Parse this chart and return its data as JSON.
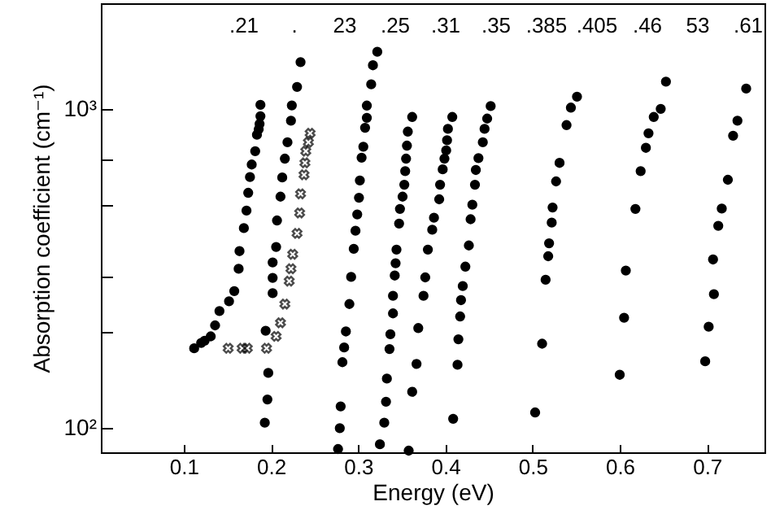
{
  "chart_data": {
    "type": "scatter",
    "xlabel": "Energy (eV)",
    "ylabel": "Absorption coefficient (cm⁻¹)",
    "log": "y",
    "grid": false,
    "marker": "circle",
    "xlim": [
      0.005,
      0.766
    ],
    "xticks": [
      0.1,
      0.2,
      0.3,
      0.4,
      0.5,
      0.6,
      0.7
    ],
    "ylim": [
      84,
      2150
    ],
    "yticks": [
      {
        "value": 100,
        "label": "10²"
      },
      {
        "value": 200,
        "label": null
      },
      {
        "value": 300,
        "label": null
      },
      {
        "value": 500,
        "label": null
      },
      {
        "value": 700,
        "label": null
      },
      {
        "value": 1000,
        "label": "10³"
      }
    ],
    "annotations": [
      ".21",
      ". ",
      "23",
      ".25",
      ".31",
      ".35",
      ".385",
      ".405",
      ".46",
      "53",
      ".61"
    ],
    "series": [
      {
        "color": "#000000",
        "x": [
          0.112,
          0.12,
          0.124,
          0.131,
          0.136,
          0.141,
          0.152,
          0.158,
          0.163,
          0.164,
          0.169,
          0.172,
          0.174,
          0.176,
          0.178,
          0.182,
          0.184,
          0.186,
          0.187,
          0.188,
          0.188
        ],
        "values": [
          178,
          185,
          188,
          194,
          210,
          233,
          250,
          269,
          316,
          359,
          424,
          481,
          547,
          613,
          671,
          739,
          832,
          865,
          900,
          951,
          1032
        ]
      },
      {
        "color": "#000000",
        "x": [
          0.193,
          0.196,
          0.197,
          0.194,
          0.202,
          0.202,
          0.202,
          0.206,
          0.207,
          0.211,
          0.213,
          0.216,
          0.219,
          0.223,
          0.224,
          0.23,
          0.234
        ],
        "values": [
          104,
          123,
          149,
          202,
          265,
          296,
          331,
          370,
          448,
          532,
          611,
          700,
          788,
          921,
          1028,
          1175,
          1406
        ]
      },
      {
        "color": "#000000",
        "marker": "cross",
        "x": [
          0.151,
          0.167,
          0.173,
          0.195,
          0.206,
          0.211,
          0.216,
          0.221,
          0.223,
          0.225,
          0.23,
          0.233,
          0.234,
          0.238,
          0.239,
          0.24,
          0.243,
          0.245
        ],
        "values": [
          178,
          178,
          178,
          178,
          194,
          214,
          245,
          289,
          316,
          351,
          408,
          473,
          543,
          623,
          679,
          739,
          788,
          841
        ]
      },
      {
        "color": "#000000",
        "x": [
          0.277,
          0.279,
          0.28,
          0.282,
          0.284,
          0.286,
          0.29,
          0.292,
          0.295,
          0.297,
          0.299,
          0.301,
          0.302,
          0.304,
          0.306,
          0.308,
          0.31,
          0.31,
          0.315,
          0.317,
          0.322
        ],
        "values": [
          86,
          100,
          117,
          161,
          179,
          201,
          245,
          298,
          365,
          416,
          468,
          528,
          598,
          705,
          763,
          875,
          940,
          1027,
          1197,
          1374,
          1514
        ]
      },
      {
        "color": "#000000",
        "x": [
          0.325,
          0.33,
          0.332,
          0.333,
          0.336,
          0.337,
          0.34,
          0.34,
          0.342,
          0.343,
          0.344,
          0.347,
          0.348,
          0.351,
          0.353,
          0.354,
          0.355,
          0.356,
          0.357,
          0.362
        ],
        "values": [
          89,
          104,
          121,
          143,
          177,
          197,
          229,
          260,
          301,
          329,
          363,
          438,
          487,
          532,
          580,
          640,
          700,
          769,
          851,
          946
        ]
      },
      {
        "color": "#000000",
        "x": [
          0.358,
          0.362,
          0.367,
          0.369,
          0.375,
          0.377,
          0.38,
          0.385,
          0.387,
          0.393,
          0.394,
          0.397,
          0.399,
          0.401,
          0.402,
          0.403,
          0.408
        ],
        "values": [
          85,
          130,
          159,
          206,
          260,
          297,
          363,
          419,
          457,
          522,
          580,
          648,
          700,
          743,
          800,
          868,
          946
        ]
      },
      {
        "color": "#000000",
        "x": [
          0.409,
          0.414,
          0.415,
          0.417,
          0.418,
          0.42,
          0.423,
          0.427,
          0.429,
          0.431,
          0.434,
          0.435,
          0.438,
          0.443,
          0.445,
          0.448,
          0.452
        ],
        "values": [
          107,
          158,
          190,
          224,
          252,
          279,
          321,
          374,
          452,
          502,
          580,
          645,
          703,
          788,
          868,
          935,
          1023
        ]
      },
      {
        "color": "#000000",
        "x": [
          0.503,
          0.511,
          0.515,
          0.518,
          0.519,
          0.522,
          0.523,
          0.527,
          0.531,
          0.539,
          0.544,
          0.551
        ],
        "values": [
          112,
          184,
          292,
          346,
          380,
          441,
          492,
          594,
          679,
          892,
          1012,
          1095
        ]
      },
      {
        "color": "#000000",
        "x": [
          0.6,
          0.605,
          0.607,
          0.618,
          0.624,
          0.63,
          0.633,
          0.639,
          0.647,
          0.653
        ],
        "values": [
          147,
          222,
          312,
          487,
          640,
          757,
          841,
          946,
          1003,
          1221
        ]
      },
      {
        "color": "#000000",
        "x": [
          0.698,
          0.702,
          0.708,
          0.707,
          0.713,
          0.717,
          0.724,
          0.73,
          0.735,
          0.745
        ],
        "values": [
          162,
          208,
          263,
          338,
          431,
          488,
          601,
          826,
          921,
          1161
        ]
      }
    ]
  }
}
